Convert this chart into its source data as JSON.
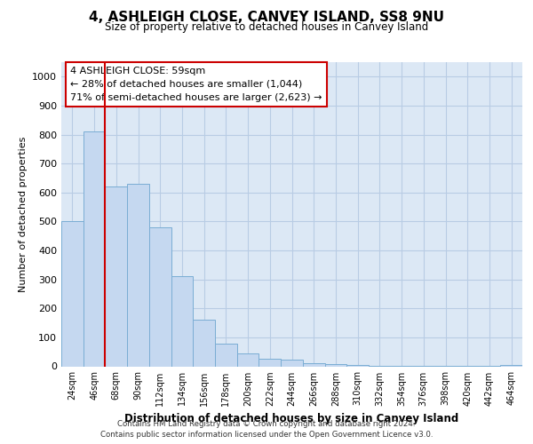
{
  "title": "4, ASHLEIGH CLOSE, CANVEY ISLAND, SS8 9NU",
  "subtitle": "Size of property relative to detached houses in Canvey Island",
  "xlabel": "Distribution of detached houses by size in Canvey Island",
  "ylabel": "Number of detached properties",
  "footer_line1": "Contains HM Land Registry data © Crown copyright and database right 2024.",
  "footer_line2": "Contains public sector information licensed under the Open Government Licence v3.0.",
  "categories": [
    "24sqm",
    "46sqm",
    "68sqm",
    "90sqm",
    "112sqm",
    "134sqm",
    "156sqm",
    "178sqm",
    "200sqm",
    "222sqm",
    "244sqm",
    "266sqm",
    "288sqm",
    "310sqm",
    "332sqm",
    "354sqm",
    "376sqm",
    "398sqm",
    "420sqm",
    "442sqm",
    "464sqm"
  ],
  "values": [
    500,
    810,
    620,
    630,
    480,
    310,
    160,
    78,
    44,
    25,
    22,
    12,
    7,
    4,
    3,
    2,
    2,
    1,
    1,
    1,
    4
  ],
  "bar_color": "#c5d8f0",
  "bar_edge_color": "#7aadd4",
  "vline_x": 1.5,
  "vline_color": "#cc0000",
  "annotation_title": "4 ASHLEIGH CLOSE: 59sqm",
  "annotation_line1": "← 28% of detached houses are smaller (1,044)",
  "annotation_line2": "71% of semi-detached houses are larger (2,623) →",
  "ylim": [
    0,
    1050
  ],
  "yticks": [
    0,
    100,
    200,
    300,
    400,
    500,
    600,
    700,
    800,
    900,
    1000
  ],
  "fig_bg_color": "#ffffff",
  "plot_bg_color": "#dce8f5",
  "grid_color": "#b8cce4"
}
